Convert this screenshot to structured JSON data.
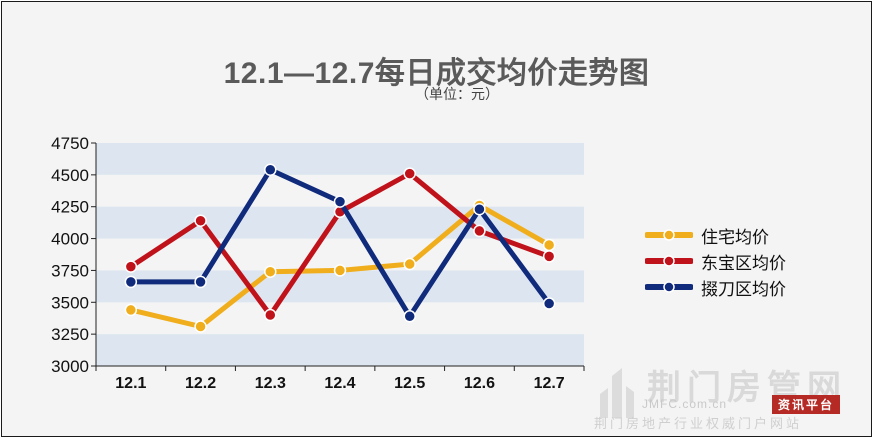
{
  "header": {
    "title": "12.1—12.7每日成交均价走势图",
    "subtitle": "（单位：元）"
  },
  "watermark": {
    "main": "荆门房管网",
    "url": "JMFC.com.cn",
    "badge": "资讯平台",
    "bottom": "荆门房地产行业权威门户网站"
  },
  "chart_data": {
    "type": "line",
    "categories": [
      "12.1",
      "12.2",
      "12.3",
      "12.4",
      "12.5",
      "12.6",
      "12.7"
    ],
    "ylim": [
      3000,
      4750
    ],
    "yticks": [
      3000,
      3250,
      3500,
      3750,
      4000,
      4250,
      4500,
      4750
    ],
    "xlabel": "",
    "ylabel": "",
    "grid": "alternating horizontal bands",
    "legend_position": "right",
    "series": [
      {
        "name": "住宅均价",
        "color": "#f0ad1c",
        "values": [
          3440,
          3310,
          3740,
          3750,
          3800,
          4260,
          3950
        ]
      },
      {
        "name": "东宝区均价",
        "color": "#c0121a",
        "values": [
          3780,
          4140,
          3400,
          4210,
          4510,
          4060,
          3860
        ]
      },
      {
        "name": "掇刀区均价",
        "color": "#102a7c",
        "values": [
          3660,
          3660,
          4540,
          4290,
          3390,
          4230,
          3490
        ]
      }
    ]
  }
}
